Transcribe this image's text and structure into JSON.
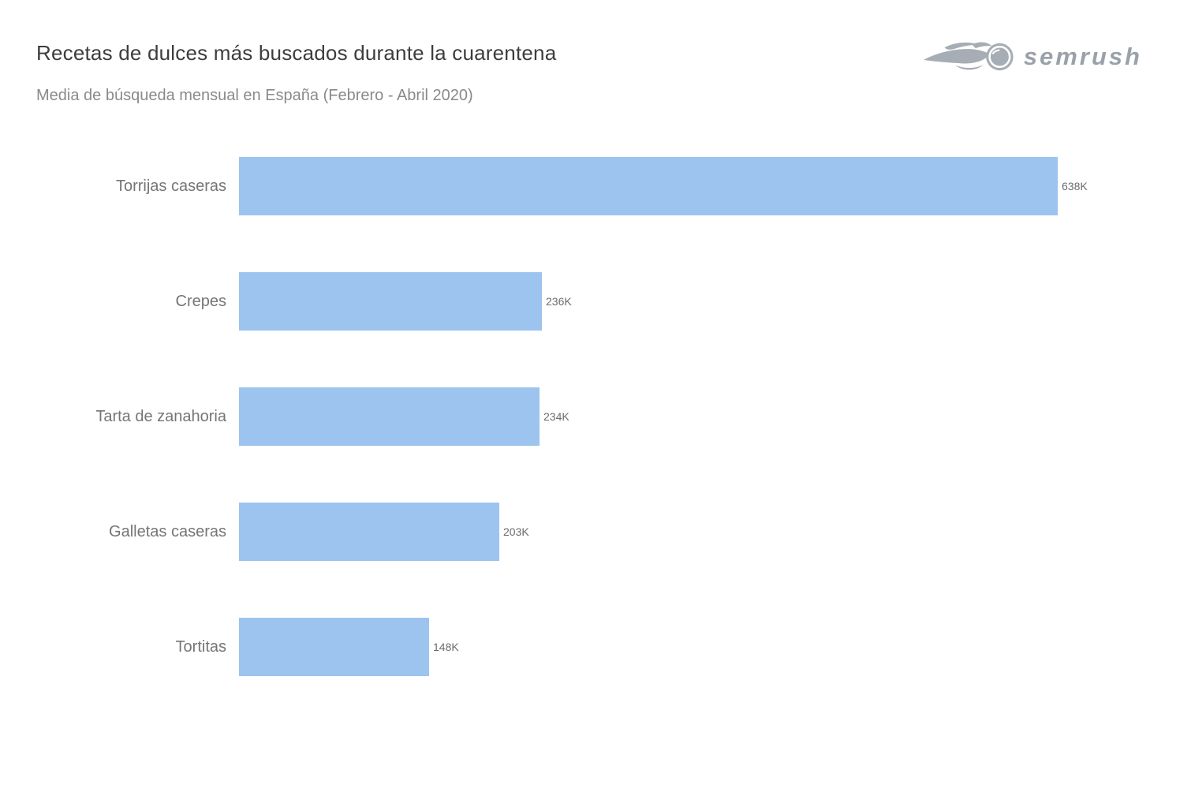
{
  "header": {
    "title": "Recetas de dulces más buscados durante la cuarentena",
    "subtitle": "Media de búsqueda mensual en España (Febrero - Abril 2020)",
    "logo_text": "semrush"
  },
  "colors": {
    "bar": "#9cc4ef",
    "title": "#3d3d3d",
    "subtitle": "#8a8a8a",
    "category_label": "#757575",
    "value_label": "#6b6b6b",
    "logo": "#9aa1a9",
    "flame": "#a6adb5"
  },
  "chart_data": {
    "type": "bar",
    "orientation": "horizontal",
    "title": "Recetas de dulces más buscados durante la cuarentena",
    "subtitle": "Media de búsqueda mensual en España (Febrero - Abril 2020)",
    "categories": [
      "Torrijas caseras",
      "Crepes",
      "Tarta de zanahoria",
      "Galletas caseras",
      "Tortitas"
    ],
    "values": [
      638000,
      236000,
      234000,
      203000,
      148000
    ],
    "value_labels": [
      "638K",
      "236K",
      "234K",
      "203K",
      "148K"
    ],
    "unit": "media de búsquedas mensuales",
    "xlim": [
      0,
      638000
    ],
    "grid": false,
    "legend": false,
    "bar_color": "#9cc4ef"
  }
}
